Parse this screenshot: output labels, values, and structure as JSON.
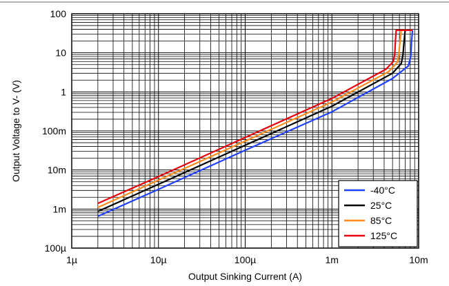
{
  "chart_data": {
    "type": "line",
    "xlabel": "Output Sinking Current (A)",
    "ylabel": "Output Voltage to V- (V)",
    "x_scale": "log",
    "y_scale": "log",
    "xlim": [
      1e-06,
      0.01
    ],
    "ylim": [
      0.0001,
      100
    ],
    "x_ticks": [
      {
        "value": 1e-06,
        "label": "1µ"
      },
      {
        "value": 1e-05,
        "label": "10µ"
      },
      {
        "value": 0.0001,
        "label": "100µ"
      },
      {
        "value": 0.001,
        "label": "1m"
      },
      {
        "value": 0.01,
        "label": "10m"
      }
    ],
    "y_ticks": [
      {
        "value": 0.0001,
        "label": "100µ"
      },
      {
        "value": 0.001,
        "label": "1m"
      },
      {
        "value": 0.01,
        "label": "10m"
      },
      {
        "value": 0.1,
        "label": "100m"
      },
      {
        "value": 1,
        "label": "1"
      },
      {
        "value": 10,
        "label": "10"
      },
      {
        "value": 100,
        "label": "100"
      }
    ],
    "grid": true,
    "legend_position": "bottom-right",
    "series": [
      {
        "name": "-40°C",
        "color": "#1f3fff",
        "x": [
          2e-06,
          1e-05,
          0.0001,
          0.001,
          0.005,
          0.0076,
          0.0081,
          0.0083,
          0.0085
        ],
        "y": [
          0.00065,
          0.0032,
          0.032,
          0.31,
          2.2,
          4.6,
          8.0,
          20,
          38
        ]
      },
      {
        "name": "25°C",
        "color": "#000000",
        "x": [
          2e-06,
          1e-05,
          0.0001,
          0.001,
          0.005,
          0.0063,
          0.0066,
          0.0068,
          0.007
        ],
        "y": [
          0.00087,
          0.0043,
          0.043,
          0.43,
          3.0,
          5.3,
          9.0,
          20,
          38
        ]
      },
      {
        "name": "85°C",
        "color": "#ff8c1a",
        "x": [
          2e-06,
          1e-05,
          0.0001,
          0.001,
          0.0045,
          0.0057,
          0.0059,
          0.0061,
          0.0063,
          0.0085
        ],
        "y": [
          0.0011,
          0.0055,
          0.055,
          0.55,
          3.3,
          5.8,
          9.0,
          20,
          38,
          38
        ]
      },
      {
        "name": "125°C",
        "color": "#e8000b",
        "x": [
          2e-06,
          1e-05,
          0.0001,
          0.001,
          0.0042,
          0.0051,
          0.0053,
          0.0054,
          0.0055,
          0.0085
        ],
        "y": [
          0.0014,
          0.0068,
          0.068,
          0.68,
          3.8,
          6.0,
          9.0,
          20,
          38,
          38
        ]
      }
    ]
  }
}
